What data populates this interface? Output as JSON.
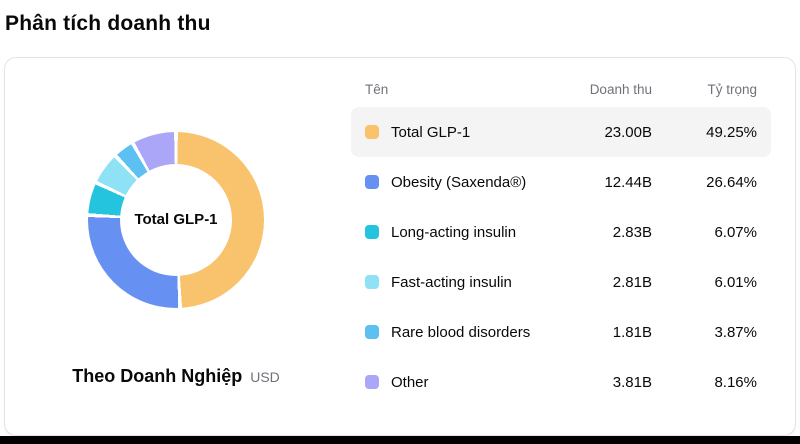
{
  "page": {
    "title": "Phân tích doanh thu"
  },
  "card": {
    "chart": {
      "center_label": "Total GLP-1",
      "caption": "Theo Doanh Nghiệp",
      "caption_unit": "USD"
    },
    "table": {
      "headers": [
        "Tên",
        "Doanh thu",
        "Tỷ trọng"
      ],
      "rows": [
        {
          "label": "Total GLP-1",
          "value": "23.00B",
          "share": "49.25%",
          "color": "#f8c36c",
          "highlighted": true
        },
        {
          "label": "Obesity (Saxenda®)",
          "value": "12.44B",
          "share": "26.64%",
          "color": "#6691f3",
          "highlighted": false
        },
        {
          "label": "Long-acting insulin",
          "value": "2.83B",
          "share": "6.07%",
          "color": "#25c4de",
          "highlighted": false
        },
        {
          "label": "Fast-acting insulin",
          "value": "2.81B",
          "share": "6.01%",
          "color": "#8fe1f6",
          "highlighted": false
        },
        {
          "label": "Rare blood disorders",
          "value": "1.81B",
          "share": "3.87%",
          "color": "#5cc0f2",
          "highlighted": false
        },
        {
          "label": "Other",
          "value": "3.81B",
          "share": "8.16%",
          "color": "#aba6f8",
          "highlighted": false
        }
      ]
    }
  },
  "chart_data": {
    "type": "pie",
    "subtype": "donut",
    "title": "Phân tích doanh thu",
    "center_label": "Total GLP-1",
    "unit": "USD",
    "categories": [
      "Total GLP-1",
      "Obesity (Saxenda®)",
      "Long-acting insulin",
      "Fast-acting insulin",
      "Rare blood disorders",
      "Other"
    ],
    "values": [
      23.0,
      12.44,
      2.83,
      2.81,
      1.81,
      3.81
    ],
    "value_labels": [
      "23.00B",
      "12.44B",
      "2.83B",
      "2.81B",
      "1.81B",
      "3.81B"
    ],
    "percentages": [
      49.25,
      26.64,
      6.07,
      6.01,
      3.87,
      8.16
    ],
    "colors": [
      "#f8c36c",
      "#6691f3",
      "#25c4de",
      "#8fe1f6",
      "#5cc0f2",
      "#aba6f8"
    ],
    "start_angle_deg": 0,
    "direction": "clockwise",
    "legend_position": "right-table"
  }
}
